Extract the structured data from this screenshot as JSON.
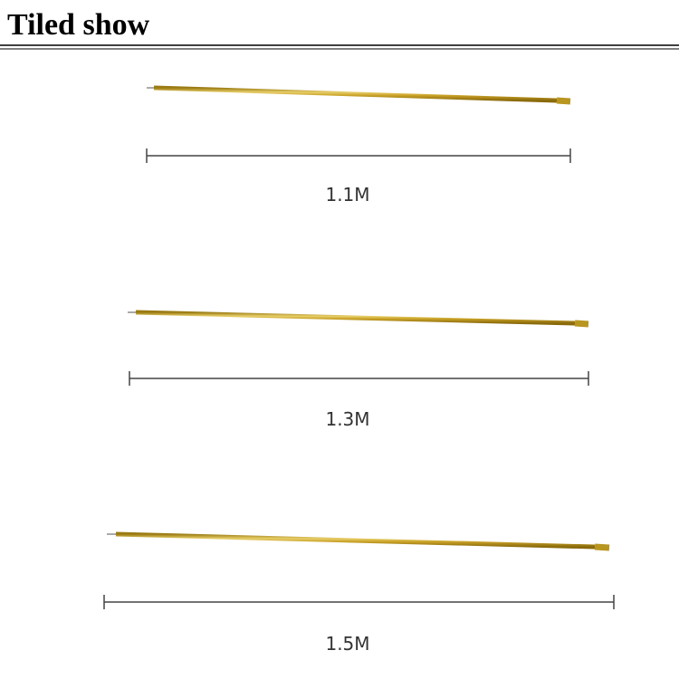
{
  "header": {
    "title": "Tiled show"
  },
  "items": [
    {
      "label": "1.1M"
    },
    {
      "label": "1.3M"
    },
    {
      "label": "1.5M"
    }
  ]
}
